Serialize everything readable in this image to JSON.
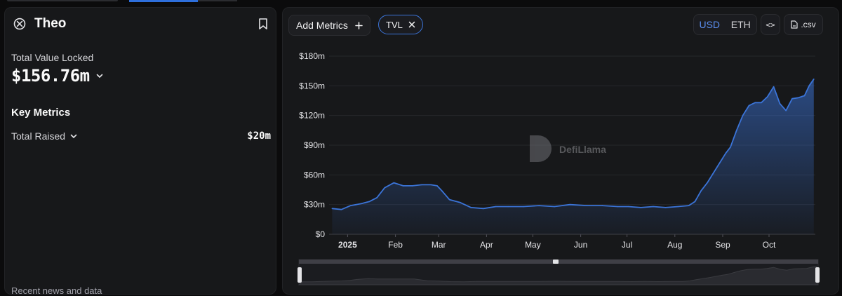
{
  "project": {
    "name": "Theo",
    "logo_icon": "theo-logo-icon",
    "bookmark_icon": "bookmark-icon"
  },
  "summary": {
    "tvl_label": "Total Value Locked",
    "tvl_value": "$156.76m"
  },
  "key_metrics": {
    "title": "Key Metrics",
    "total_raised_label": "Total Raised",
    "total_raised_value": "$20m"
  },
  "cutoff_text": "Recent news and data",
  "toolbar": {
    "add_metrics_label": "Add Metrics",
    "tvl_chip_label": "TVL",
    "currency_usd": "USD",
    "currency_eth": "ETH",
    "embed_label": "<>",
    "csv_label": ".csv",
    "accent": "#3b74d8"
  },
  "watermark": "DefiLlama",
  "chart_data": {
    "type": "area",
    "series": [
      {
        "name": "TVL",
        "color": "#3b74d8",
        "x": [
          "2024-12-22",
          "2024-12-28",
          "2025-01-03",
          "2025-01-10",
          "2025-01-15",
          "2025-01-20",
          "2025-01-25",
          "2025-01-31",
          "2025-02-06",
          "2025-02-12",
          "2025-02-18",
          "2025-02-24",
          "2025-02-28",
          "2025-03-03",
          "2025-03-08",
          "2025-03-15",
          "2025-03-22",
          "2025-03-30",
          "2025-04-07",
          "2025-04-15",
          "2025-04-25",
          "2025-05-05",
          "2025-05-15",
          "2025-05-25",
          "2025-06-05",
          "2025-06-15",
          "2025-06-25",
          "2025-07-02",
          "2025-07-10",
          "2025-07-18",
          "2025-07-26",
          "2025-08-03",
          "2025-08-10",
          "2025-08-14",
          "2025-08-18",
          "2025-08-22",
          "2025-08-26",
          "2025-08-30",
          "2025-09-03",
          "2025-09-06",
          "2025-09-10",
          "2025-09-14",
          "2025-09-18",
          "2025-09-22",
          "2025-09-26",
          "2025-09-30",
          "2025-10-04",
          "2025-10-08",
          "2025-10-12",
          "2025-10-16",
          "2025-10-20",
          "2025-10-24",
          "2025-10-27",
          "2025-10-30"
        ],
        "values": [
          26,
          25,
          29,
          31,
          33,
          37,
          47,
          52,
          49,
          49,
          50,
          50,
          49,
          44,
          35,
          32,
          27,
          26,
          28,
          28,
          28,
          29,
          28,
          30,
          29,
          29,
          28,
          28,
          27,
          28,
          27,
          28,
          29,
          33,
          44,
          52,
          62,
          72,
          82,
          88,
          105,
          120,
          130,
          133,
          133,
          139,
          149,
          132,
          125,
          137,
          138,
          140,
          150,
          156.76
        ]
      }
    ],
    "xlabel": "",
    "ylabel": "",
    "x_ticks": [
      "2025",
      "Feb",
      "Mar",
      "Apr",
      "May",
      "Jun",
      "Jul",
      "Aug",
      "Sep",
      "Oct"
    ],
    "y_ticks": [
      "$0",
      "$30m",
      "$60m",
      "$90m",
      "$120m",
      "$150m",
      "$180m"
    ],
    "ylim": [
      0,
      180
    ],
    "grid": true,
    "legend": "none"
  }
}
